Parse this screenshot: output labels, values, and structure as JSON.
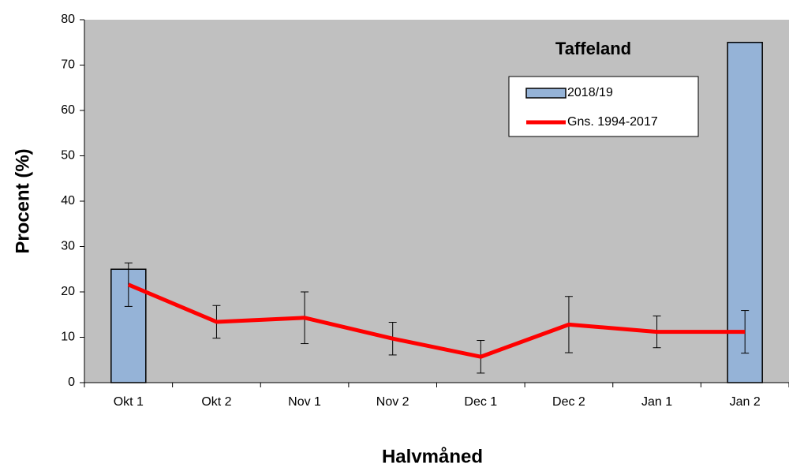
{
  "chart_data": {
    "type": "bar-line",
    "title": "Taffeland",
    "x_label": "Halvmåned",
    "y_label": "Procent (%)",
    "categories": [
      "Okt 1",
      "Okt 2",
      "Nov 1",
      "Nov 2",
      "Dec 1",
      "Dec 2",
      "Jan 1",
      "Jan 2"
    ],
    "series": [
      {
        "name": "2018/19",
        "type": "bar",
        "color": "#95b3d7",
        "values": [
          25,
          null,
          null,
          null,
          null,
          null,
          null,
          75
        ]
      },
      {
        "name": "Gns. 1994-2017",
        "type": "line",
        "color": "#ff0000",
        "values": [
          21.6,
          13.4,
          14.3,
          9.7,
          5.7,
          12.8,
          11.2,
          11.2
        ],
        "errors": [
          4.8,
          3.6,
          5.7,
          3.6,
          3.6,
          6.2,
          3.5,
          4.7
        ]
      }
    ],
    "ylim": [
      0,
      80
    ],
    "yticks": [
      0,
      10,
      20,
      30,
      40,
      50,
      60,
      70,
      80
    ],
    "plot_background": "#c0c0c0"
  }
}
